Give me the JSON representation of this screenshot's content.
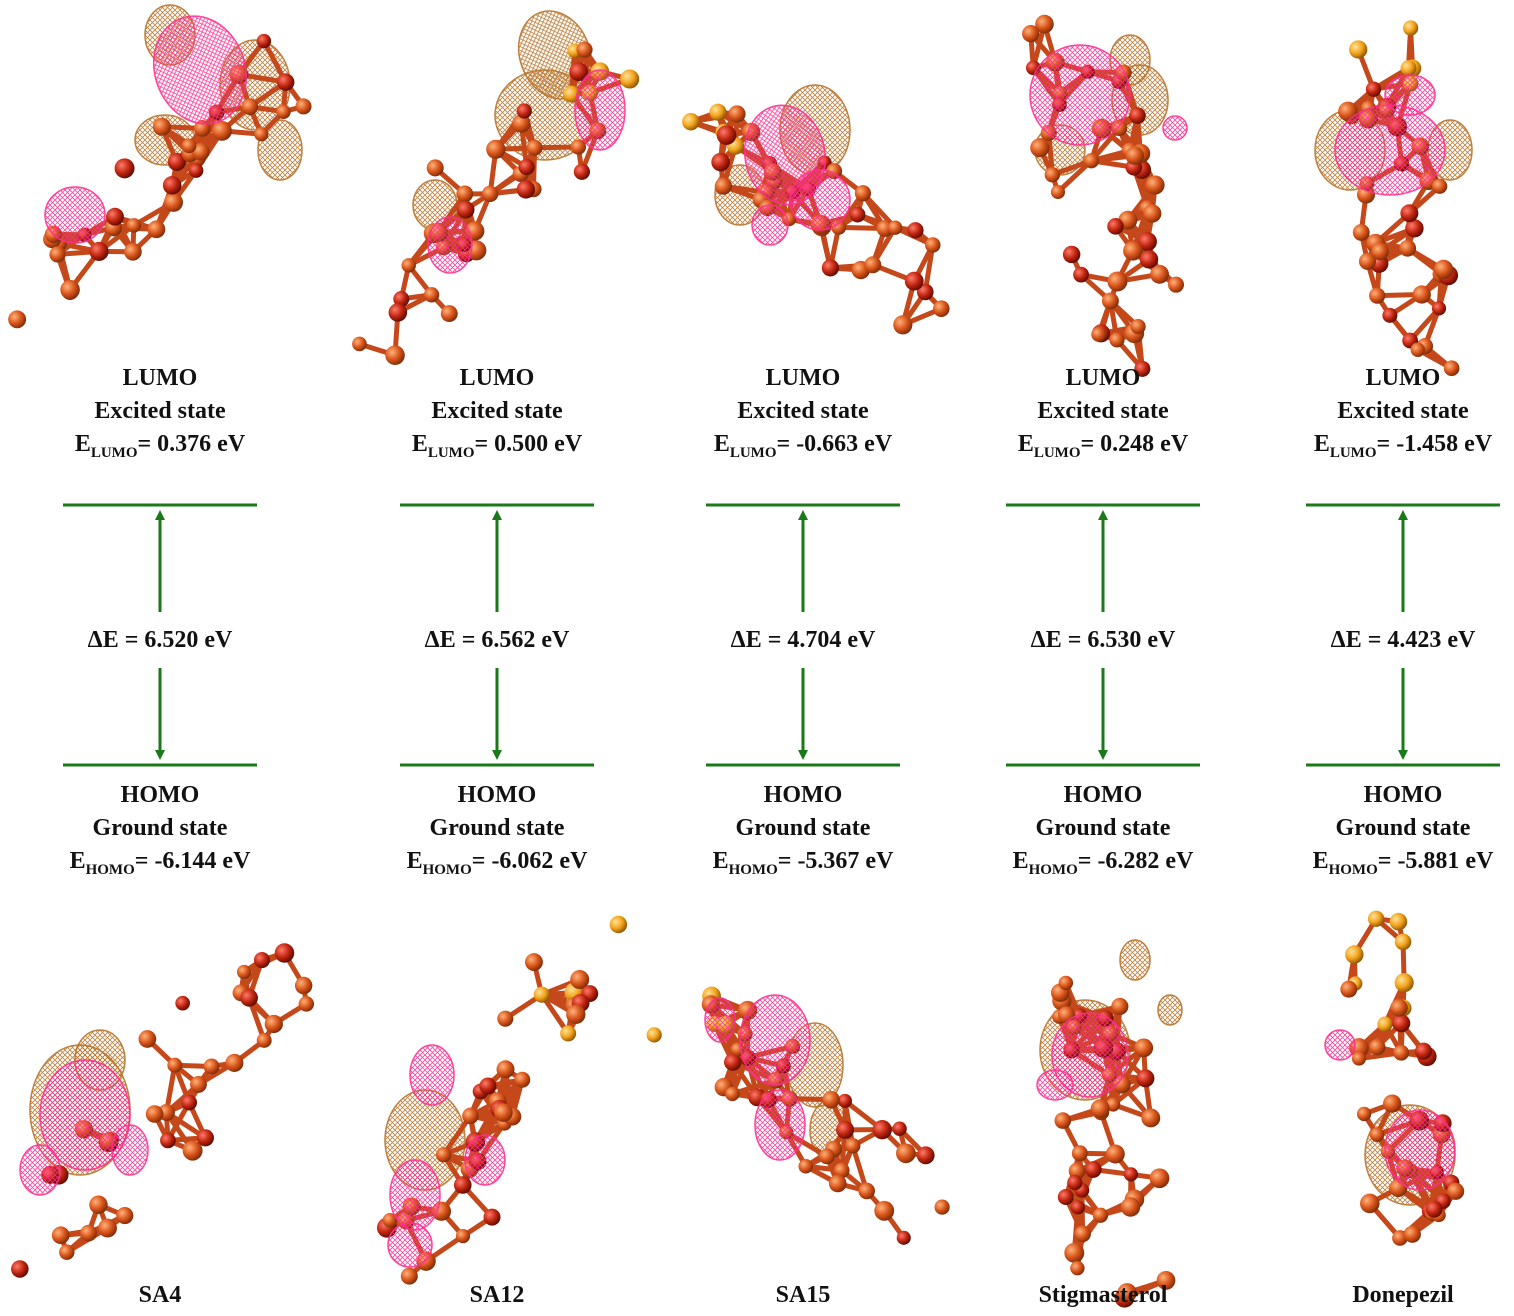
{
  "columns": [
    {
      "name": "SA4",
      "lumo_title": "LUMO",
      "lumo_state": "Excited state",
      "lumo_sym": "E",
      "lumo_sub": "LUMO",
      "lumo_val": "= 0.376 eV",
      "homo_title": "HOMO",
      "homo_state": "Ground state",
      "homo_sym": "E",
      "homo_sub": "HOMO",
      "homo_val": "= -6.144 eV",
      "gap": "ΔE = 6.520 eV"
    },
    {
      "name": "SA12",
      "lumo_title": "LUMO",
      "lumo_state": "Excited state",
      "lumo_sym": "E",
      "lumo_sub": "LUMO",
      "lumo_val": "= 0.500 eV",
      "homo_title": "HOMO",
      "homo_state": "Ground state",
      "homo_sym": "E",
      "homo_sub": "HOMO",
      "homo_val": "= -6.062 eV",
      "gap": "ΔE = 6.562 eV"
    },
    {
      "name": "SA15",
      "lumo_title": "LUMO",
      "lumo_state": "Excited state",
      "lumo_sym": "E",
      "lumo_sub": "LUMO",
      "lumo_val": "= -0.663 eV",
      "homo_title": "HOMO",
      "homo_state": "Ground state",
      "homo_sym": "E",
      "homo_sub": "HOMO",
      "homo_val": "= -5.367 eV",
      "gap": "ΔE = 4.704 eV"
    },
    {
      "name": "Stigmasterol",
      "lumo_title": "LUMO",
      "lumo_state": "Excited state",
      "lumo_sym": "E",
      "lumo_sub": "LUMO",
      "lumo_val": "= 0.248 eV",
      "homo_title": "HOMO",
      "homo_state": "Ground state",
      "homo_sym": "E",
      "homo_sub": "HOMO",
      "homo_val": "= -6.282 eV",
      "gap": "ΔE = 6.530 eV"
    },
    {
      "name": "Donepezil",
      "lumo_title": "LUMO",
      "lumo_state": "Excited state",
      "lumo_sym": "E",
      "lumo_sub": "LUMO",
      "lumo_val": "= -1.458 eV",
      "homo_title": "HOMO",
      "homo_state": "Ground state",
      "homo_sym": "E",
      "homo_sub": "HOMO",
      "homo_val": "= -5.881 eV",
      "gap": "ΔE = 4.423 eV"
    }
  ],
  "colors": {
    "level_line": "#1a7a1a",
    "atom_main": "#d8541a",
    "atom_dark": "#c0250f",
    "atom_sulfur": "#f2a21a",
    "orbital_positive": "#ff2f8f",
    "orbital_negative": "#b8732a"
  }
}
